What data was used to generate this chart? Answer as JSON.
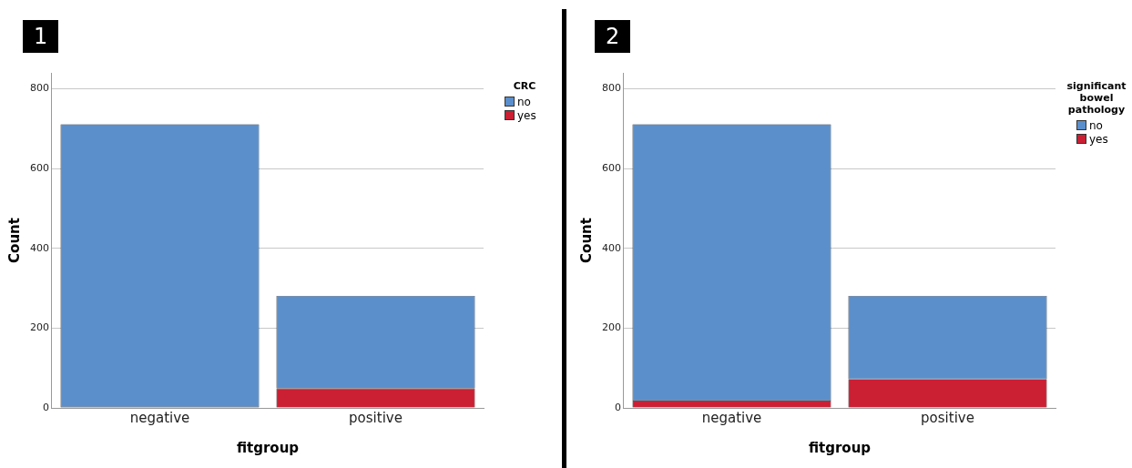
{
  "chart_data": [
    {
      "type": "bar",
      "stacked": true,
      "categories": [
        "negative",
        "positive"
      ],
      "xlabel": "fitgroup",
      "ylabel": "Count",
      "legend_title": "CRC",
      "legend": "top right",
      "grid": "y",
      "ylim": [
        0,
        840
      ],
      "yticks": [
        0,
        200,
        400,
        600,
        800
      ],
      "annotations": [
        "1"
      ],
      "series": [
        {
          "name": "yes",
          "color": "#cb1f34",
          "values": [
            2,
            49
          ]
        },
        {
          "name": "no",
          "color": "#5b8fcb",
          "values": [
            709,
            232
          ]
        }
      ]
    },
    {
      "type": "bar",
      "stacked": true,
      "categories": [
        "negative",
        "positive"
      ],
      "xlabel": "fitgroup",
      "ylabel": "Count",
      "legend_title": "significant bowel pathology",
      "legend": "top right",
      "grid": "y",
      "ylim": [
        0,
        840
      ],
      "yticks": [
        0,
        200,
        400,
        600,
        800
      ],
      "annotations": [
        "2"
      ],
      "series": [
        {
          "name": "yes",
          "color": "#cb1f34",
          "values": [
            18,
            72
          ]
        },
        {
          "name": "no",
          "color": "#5b8fcb",
          "values": [
            693,
            209
          ]
        }
      ]
    }
  ]
}
